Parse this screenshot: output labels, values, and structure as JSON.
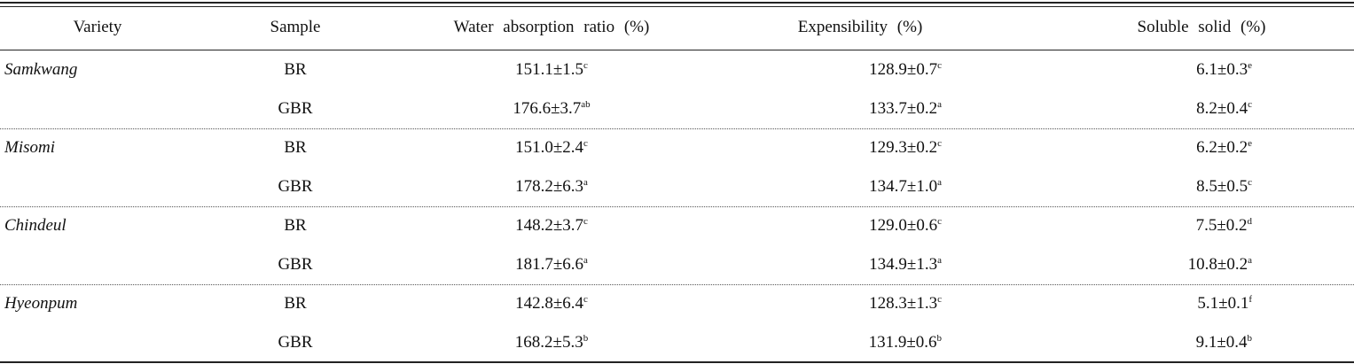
{
  "table": {
    "header": [
      "Variety",
      "Sample",
      "Water absorption ratio (%)",
      "Expensibility (%)",
      "Soluble solid (%)"
    ],
    "groups": [
      {
        "variety": "Samkwang",
        "rows": [
          {
            "sample": "BR",
            "values": [
              {
                "text": "151.1±1.5",
                "sup": "c"
              },
              {
                "text": "128.9±0.7",
                "sup": "c"
              },
              {
                "text": "6.1±0.3",
                "sup": "e"
              }
            ]
          },
          {
            "sample": "GBR",
            "values": [
              {
                "text": "176.6±3.7",
                "sup": "ab"
              },
              {
                "text": "133.7±0.2",
                "sup": "a"
              },
              {
                "text": "8.2±0.4",
                "sup": "c"
              }
            ]
          }
        ]
      },
      {
        "variety": "Misomi",
        "rows": [
          {
            "sample": "BR",
            "values": [
              {
                "text": "151.0±2.4",
                "sup": "c"
              },
              {
                "text": "129.3±0.2",
                "sup": "c"
              },
              {
                "text": "6.2±0.2",
                "sup": "e"
              }
            ]
          },
          {
            "sample": "GBR",
            "values": [
              {
                "text": "178.2±6.3",
                "sup": "a"
              },
              {
                "text": "134.7±1.0",
                "sup": "a"
              },
              {
                "text": "8.5±0.5",
                "sup": "c"
              }
            ]
          }
        ]
      },
      {
        "variety": "Chindeul",
        "rows": [
          {
            "sample": "BR",
            "values": [
              {
                "text": "148.2±3.7",
                "sup": "c"
              },
              {
                "text": "129.0±0.6",
                "sup": "c"
              },
              {
                "text": "7.5±0.2",
                "sup": "d"
              }
            ]
          },
          {
            "sample": "GBR",
            "values": [
              {
                "text": "181.7±6.6",
                "sup": "a"
              },
              {
                "text": "134.9±1.3",
                "sup": "a"
              },
              {
                "text": "10.8±0.2",
                "sup": "a"
              }
            ]
          }
        ]
      },
      {
        "variety": "Hyeonpum",
        "rows": [
          {
            "sample": "BR",
            "values": [
              {
                "text": "142.8±6.4",
                "sup": "c"
              },
              {
                "text": "128.3±1.3",
                "sup": "c"
              },
              {
                "text": "5.1±0.1",
                "sup": "f"
              }
            ]
          },
          {
            "sample": "GBR",
            "values": [
              {
                "text": "168.2±5.3",
                "sup": "b"
              },
              {
                "text": "131.9±0.6",
                "sup": "b"
              },
              {
                "text": "9.1±0.4",
                "sup": "b"
              }
            ]
          }
        ]
      }
    ]
  }
}
